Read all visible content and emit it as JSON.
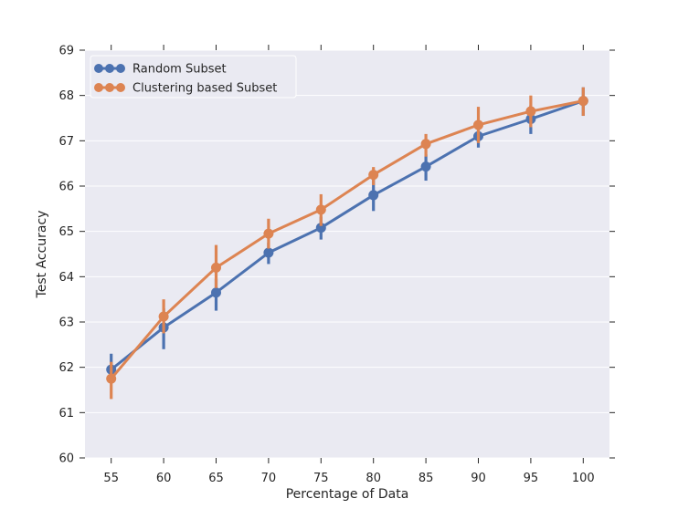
{
  "chart_data": {
    "type": "line",
    "xlabel": "Percentage of Data",
    "ylabel": "Test Accuracy",
    "categories": [
      "55",
      "60",
      "65",
      "70",
      "75",
      "80",
      "85",
      "90",
      "95",
      "100"
    ],
    "ylim": [
      60,
      69
    ],
    "yticks": [
      "60",
      "61",
      "62",
      "63",
      "64",
      "65",
      "66",
      "67",
      "68",
      "69"
    ],
    "grid": true,
    "legend_position": "top-left",
    "series": [
      {
        "name": "Random Subset",
        "color": "#4c72b0",
        "values": [
          61.95,
          62.88,
          63.65,
          64.53,
          65.08,
          65.8,
          66.43,
          67.1,
          67.48,
          67.88
        ],
        "err_low": [
          61.65,
          62.4,
          63.25,
          64.28,
          64.82,
          65.45,
          66.12,
          66.85,
          67.15,
          67.55
        ],
        "err_high": [
          62.3,
          63.3,
          63.95,
          64.75,
          65.32,
          66.15,
          66.7,
          67.33,
          67.78,
          68.18
        ]
      },
      {
        "name": "Clustering based Subset",
        "color": "#dd8452",
        "values": [
          61.75,
          63.12,
          64.2,
          64.95,
          65.48,
          66.25,
          66.93,
          67.35,
          67.65,
          67.88
        ],
        "err_low": [
          61.3,
          62.75,
          63.75,
          64.62,
          65.12,
          66.02,
          66.65,
          66.95,
          67.3,
          67.55
        ],
        "err_high": [
          62.12,
          63.5,
          64.7,
          65.28,
          65.82,
          66.42,
          67.15,
          67.75,
          68.0,
          68.18
        ]
      }
    ]
  }
}
